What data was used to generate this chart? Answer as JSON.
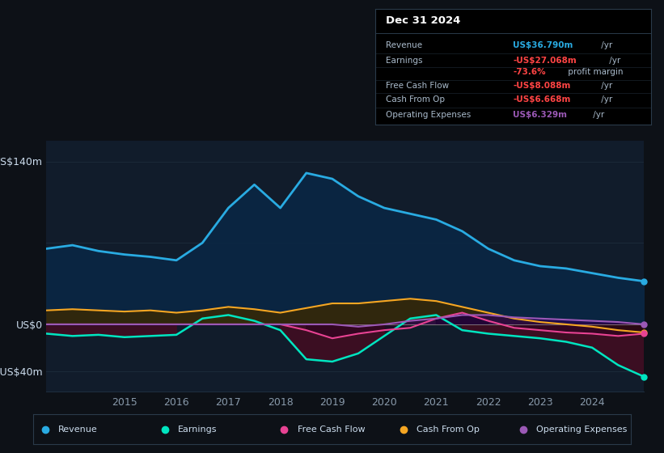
{
  "bg_color": "#0d1117",
  "plot_bg": "#111c2b",
  "grid_color": "#1e2d3d",
  "zero_line_color": "#aaaaaa",
  "ylabel_top": "US$140m",
  "ylabel_zero": "US$0",
  "ylabel_bottom": "-US$40m",
  "ylim": [
    -58,
    158
  ],
  "years": [
    2013.5,
    2014,
    2014.5,
    2015,
    2015.5,
    2016,
    2016.5,
    2017,
    2017.5,
    2018,
    2018.5,
    2019,
    2019.5,
    2020,
    2020.5,
    2021,
    2021.5,
    2022,
    2022.5,
    2023,
    2023.5,
    2024,
    2024.5,
    2025.0
  ],
  "revenue": [
    65,
    68,
    63,
    60,
    58,
    55,
    70,
    100,
    120,
    100,
    130,
    125,
    110,
    100,
    95,
    90,
    80,
    65,
    55,
    50,
    48,
    44,
    40,
    37
  ],
  "earnings": [
    -8,
    -10,
    -9,
    -11,
    -10,
    -9,
    5,
    8,
    3,
    -5,
    -30,
    -32,
    -25,
    -10,
    5,
    8,
    -5,
    -8,
    -10,
    -12,
    -15,
    -20,
    -35,
    -45
  ],
  "free_cash_flow": [
    0,
    0,
    0,
    0,
    0,
    0,
    0,
    0,
    0,
    0,
    -5,
    -12,
    -8,
    -5,
    -3,
    5,
    10,
    3,
    -3,
    -5,
    -7,
    -8,
    -10,
    -8
  ],
  "cash_from_op": [
    12,
    13,
    12,
    11,
    12,
    10,
    12,
    15,
    13,
    10,
    14,
    18,
    18,
    20,
    22,
    20,
    15,
    10,
    5,
    2,
    0,
    -2,
    -5,
    -7
  ],
  "op_expenses": [
    0,
    0,
    0,
    0,
    0,
    0,
    0,
    0,
    0,
    0,
    0,
    0,
    -2,
    0,
    3,
    5,
    8,
    8,
    6,
    5,
    4,
    3,
    2,
    0
  ],
  "revenue_color": "#29abe2",
  "earnings_color": "#00e5c0",
  "fcf_color": "#e84393",
  "cfop_color": "#f5a623",
  "opex_color": "#9b59b6",
  "revenue_fill": "#0a2744",
  "earnings_fill_neg": "#4a0a20",
  "earnings_fill_pos": "#1a4a3a",
  "legend_bg": "#0d1117",
  "legend_border": "#2a3a4a",
  "info_box_bg": "#000000",
  "info_box_border": "#2a3a4a",
  "title_text": "Dec 31 2024",
  "xticks": [
    2015,
    2016,
    2017,
    2018,
    2019,
    2020,
    2021,
    2022,
    2023,
    2024
  ],
  "tick_color": "#8899aa",
  "text_color": "#ccddee"
}
